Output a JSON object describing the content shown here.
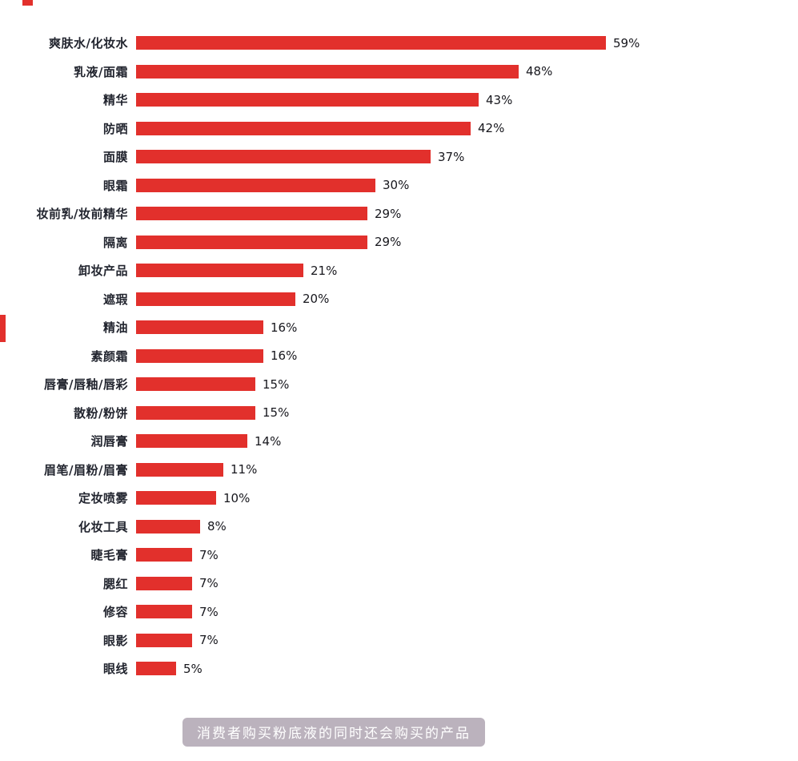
{
  "colors": {
    "bar": "#e2302c",
    "label_text": "#22252f",
    "value_text": "#17171d",
    "caption_bg": "rgba(170,159,173,0.8)",
    "caption_text": "#ffffff"
  },
  "caption": "消费者购买粉底液的同时还会购买的产品",
  "chart_data": {
    "type": "bar",
    "orientation": "horizontal",
    "title": "消费者购买粉底液的同时还会购买的产品",
    "categories": [
      "爽肤水/化妆水",
      "乳液/面霜",
      "精华",
      "防晒",
      "面膜",
      "眼霜",
      "妆前乳/妆前精华",
      "隔离",
      "卸妆产品",
      "遮瑕",
      "精油",
      "素颜霜",
      "唇膏/唇釉/唇彩",
      "散粉/粉饼",
      "润唇膏",
      "眉笔/眉粉/眉膏",
      "定妆喷雾",
      "化妆工具",
      "睫毛膏",
      "腮红",
      "修容",
      "眼影",
      "眼线"
    ],
    "values": [
      59,
      48,
      43,
      42,
      37,
      30,
      29,
      29,
      21,
      20,
      16,
      16,
      15,
      15,
      14,
      11,
      10,
      8,
      7,
      7,
      7,
      7,
      5
    ],
    "value_suffix": "%",
    "xlim": [
      0,
      60
    ],
    "grid": false,
    "axis_labels_visible": false,
    "legend_position": "none"
  }
}
